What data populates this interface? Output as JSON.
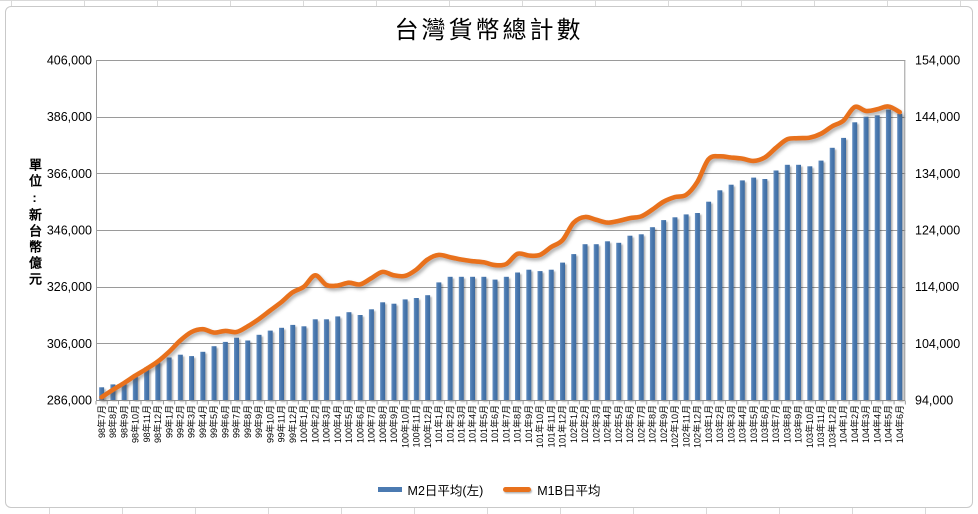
{
  "chart_data": {
    "type": "combo",
    "title": "台灣貨幣總計數",
    "legend_position": "bottom",
    "grid": true,
    "categories": [
      "98年7月",
      "98年8月",
      "98年9月",
      "98年10月",
      "98年11月",
      "98年12月",
      "99年1月",
      "99年2月",
      "99年3月",
      "99年4月",
      "99年5月",
      "99年6月",
      "99年7月",
      "99年8月",
      "99年9月",
      "99年10月",
      "99年11月",
      "99年12月",
      "100年1月",
      "100年2月",
      "100年3月",
      "100年4月",
      "100年5月",
      "100年6月",
      "100年7月",
      "100年8月",
      "100年9月",
      "100年10月",
      "100年11月",
      "100年12月",
      "101年1月",
      "101年2月",
      "101年3月",
      "101年4月",
      "101年5月",
      "101年6月",
      "101年7月",
      "101年8月",
      "101年9月",
      "101年10月",
      "101年11月",
      "101年12月",
      "102年1月",
      "102年2月",
      "102年3月",
      "102年4月",
      "102年5月",
      "102年6月",
      "102年7月",
      "102年8月",
      "102年9月",
      "102年10月",
      "102年11月",
      "102年12月",
      "103年1月",
      "103年2月",
      "103年3月",
      "103年4月",
      "103年5月",
      "103年6月",
      "103年7月",
      "103年8月",
      "103年9月",
      "103年10月",
      "103年11月",
      "103年12月",
      "104年1月",
      "104年2月",
      "104年3月",
      "104年4月",
      "104年5月",
      "104年6月"
    ],
    "series": [
      {
        "name": "M2日平均(左)",
        "type": "bar",
        "axis": "left",
        "color": "#4b7ab1",
        "values": [
          290500,
          291500,
          292000,
          294500,
          297500,
          299500,
          301000,
          302000,
          301500,
          303000,
          305000,
          306500,
          308000,
          307000,
          309000,
          310500,
          311500,
          312500,
          312000,
          314500,
          314500,
          315500,
          317000,
          316000,
          318000,
          320500,
          320000,
          321500,
          322000,
          323000,
          327500,
          329500,
          329500,
          329500,
          329500,
          328500,
          329500,
          331000,
          332000,
          331500,
          332000,
          334500,
          337500,
          341000,
          341000,
          342000,
          341500,
          344000,
          344500,
          347000,
          349500,
          350500,
          351500,
          352000,
          356000,
          360000,
          362000,
          363500,
          364500,
          364000,
          367000,
          369000,
          369000,
          368500,
          370500,
          375000,
          378500,
          384000,
          386000,
          386500,
          388500,
          387000
        ]
      },
      {
        "name": "M1B日平均",
        "type": "line",
        "axis": "right",
        "color": "#e8711c",
        "values": [
          94500,
          95800,
          97000,
          98300,
          99500,
          100800,
          102500,
          104500,
          106000,
          106500,
          105900,
          106200,
          106000,
          107000,
          108300,
          109800,
          111300,
          113000,
          114000,
          116000,
          114300,
          114200,
          114700,
          114400,
          115500,
          116600,
          116000,
          115900,
          117000,
          118800,
          119600,
          119200,
          118800,
          118500,
          118300,
          117800,
          118000,
          119800,
          119500,
          119600,
          121000,
          122200,
          125300,
          126300,
          125800,
          125300,
          125600,
          126100,
          126400,
          127600,
          129000,
          129800,
          130200,
          132500,
          136500,
          137000,
          136800,
          136600,
          136200,
          136800,
          138500,
          140000,
          140200,
          140300,
          141000,
          142300,
          143300,
          145700,
          145000,
          145300,
          145800,
          144800
        ]
      }
    ],
    "left_axis": {
      "title": "單位:新台幣億元",
      "min": 286000,
      "max": 406000,
      "step": 20000,
      "tick_labels": [
        "286,000",
        "306,000",
        "326,000",
        "346,000",
        "366,000",
        "386,000",
        "406,000"
      ]
    },
    "right_axis": {
      "min": 94000,
      "max": 154000,
      "step": 10000,
      "tick_labels": [
        "94,000",
        "104,000",
        "114,000",
        "124,000",
        "134,000",
        "144,000",
        "154,000"
      ]
    },
    "colors": {
      "grid": "#9a9a9a",
      "plot_border": "#9a9a9a",
      "axis": "#8f8f8f",
      "tick": "#8f8f8f",
      "text": "#000000",
      "chart_border": "#c9c9c9",
      "sheet_gridline": "#d9d9d9",
      "bar_shadow": "rgba(0,0,0,0.30)"
    }
  }
}
